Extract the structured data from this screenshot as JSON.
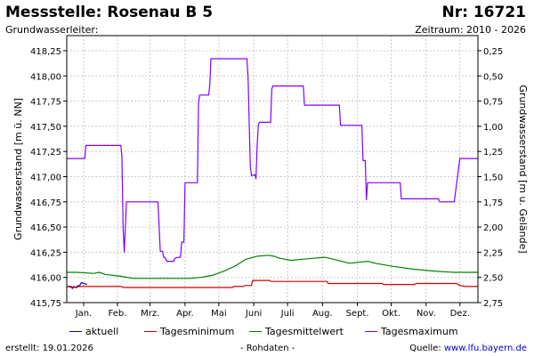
{
  "header": {
    "title": "Messstelle: Rosenau B 5",
    "nr": "Nr: 16721",
    "subtitle_left": "Grundwasserleiter:",
    "subtitle_right": "Zeitraum: 2010 - 2026"
  },
  "footer": {
    "created": "erstellt:  19.01.2026",
    "center": "- Rohdaten -",
    "source_label": "Quelle: ",
    "source_link": "www.lfu.bayern.de"
  },
  "chart_data": {
    "type": "line",
    "x_unit": "day of year (1 = 1 Jan)",
    "xlim": [
      1,
      366
    ],
    "ylim": [
      415.75,
      418.4
    ],
    "ylabel": "Grundwasserstand [m ü. NN]",
    "ylabel_right": "Grundwasserstand [m u. Gelände]",
    "grid": true,
    "legend_position": "bottom",
    "months": [
      {
        "label": "Jan.",
        "day": 16
      },
      {
        "label": "Feb.",
        "day": 46
      },
      {
        "label": "Mrz.",
        "day": 75
      },
      {
        "label": "Apr.",
        "day": 106
      },
      {
        "label": "Mai",
        "day": 136
      },
      {
        "label": "Juni",
        "day": 167
      },
      {
        "label": "Juli",
        "day": 197
      },
      {
        "label": "Aug.",
        "day": 228
      },
      {
        "label": "Sept.",
        "day": 259
      },
      {
        "label": "Okt.",
        "day": 289
      },
      {
        "label": "Nov.",
        "day": 320
      },
      {
        "label": "Dez.",
        "day": 350
      }
    ],
    "yticks_left": [
      {
        "value": 415.75,
        "label": "415,75"
      },
      {
        "value": 416.0,
        "label": "416,00"
      },
      {
        "value": 416.25,
        "label": "416,25"
      },
      {
        "value": 416.5,
        "label": "416,50"
      },
      {
        "value": 416.75,
        "label": "416,75"
      },
      {
        "value": 417.0,
        "label": "417,00"
      },
      {
        "value": 417.25,
        "label": "417,25"
      },
      {
        "value": 417.5,
        "label": "417,50"
      },
      {
        "value": 417.75,
        "label": "417,75"
      },
      {
        "value": 418.0,
        "label": "418,00"
      },
      {
        "value": 418.25,
        "label": "418,25"
      }
    ],
    "yticks_right": [
      {
        "value": 415.75,
        "label": "2,75"
      },
      {
        "value": 416.0,
        "label": "2,50"
      },
      {
        "value": 416.25,
        "label": "2,25"
      },
      {
        "value": 416.5,
        "label": "2,00"
      },
      {
        "value": 416.75,
        "label": "1,75"
      },
      {
        "value": 417.0,
        "label": "1,50"
      },
      {
        "value": 417.25,
        "label": "1,25"
      },
      {
        "value": 417.5,
        "label": "1,00"
      },
      {
        "value": 417.75,
        "label": "0,75"
      },
      {
        "value": 418.0,
        "label": "0,50"
      },
      {
        "value": 418.25,
        "label": "0,25"
      }
    ],
    "series": [
      {
        "name": "aktuell",
        "color": "#0000cc",
        "points": [
          [
            1,
            415.91
          ],
          [
            5,
            415.91
          ],
          [
            6,
            415.89
          ],
          [
            7,
            415.91
          ],
          [
            9,
            415.9
          ],
          [
            11,
            415.92
          ],
          [
            12,
            415.91
          ],
          [
            13,
            415.93
          ],
          [
            14,
            415.95
          ],
          [
            16,
            415.94
          ],
          [
            19,
            415.93
          ]
        ]
      },
      {
        "name": "Tagesminimum",
        "color": "#cc0000",
        "points": [
          [
            1,
            415.91
          ],
          [
            6,
            415.9
          ],
          [
            10,
            415.9
          ],
          [
            11,
            415.91
          ],
          [
            50,
            415.91
          ],
          [
            51,
            415.9
          ],
          [
            148,
            415.9
          ],
          [
            149,
            415.91
          ],
          [
            158,
            415.91
          ],
          [
            159,
            415.92
          ],
          [
            165,
            415.92
          ],
          [
            166,
            415.97
          ],
          [
            181,
            415.97
          ],
          [
            182,
            415.96
          ],
          [
            232,
            415.96
          ],
          [
            233,
            415.94
          ],
          [
            281,
            415.94
          ],
          [
            282,
            415.93
          ],
          [
            310,
            415.93
          ],
          [
            311,
            415.94
          ],
          [
            347,
            415.94
          ],
          [
            350,
            415.92
          ],
          [
            355,
            415.91
          ],
          [
            366,
            415.91
          ]
        ]
      },
      {
        "name": "Tagesmittelwert",
        "color": "#008000",
        "points": [
          [
            1,
            416.05
          ],
          [
            10,
            416.05
          ],
          [
            25,
            416.04
          ],
          [
            30,
            416.05
          ],
          [
            35,
            416.03
          ],
          [
            50,
            416.01
          ],
          [
            60,
            415.99
          ],
          [
            90,
            415.99
          ],
          [
            110,
            415.99
          ],
          [
            120,
            416.0
          ],
          [
            130,
            416.02
          ],
          [
            140,
            416.06
          ],
          [
            150,
            416.11
          ],
          [
            160,
            416.18
          ],
          [
            170,
            416.21
          ],
          [
            180,
            416.22
          ],
          [
            185,
            416.21
          ],
          [
            190,
            416.19
          ],
          [
            200,
            416.17
          ],
          [
            210,
            416.18
          ],
          [
            220,
            416.19
          ],
          [
            230,
            416.2
          ],
          [
            238,
            416.18
          ],
          [
            245,
            416.16
          ],
          [
            252,
            416.14
          ],
          [
            260,
            416.15
          ],
          [
            268,
            416.16
          ],
          [
            275,
            416.14
          ],
          [
            290,
            416.11
          ],
          [
            310,
            416.08
          ],
          [
            330,
            416.06
          ],
          [
            345,
            416.05
          ],
          [
            366,
            416.05
          ]
        ]
      },
      {
        "name": "Tagesmaximum",
        "color": "#8000ff",
        "points": [
          [
            1,
            417.18
          ],
          [
            17,
            417.18
          ],
          [
            18,
            417.31
          ],
          [
            49,
            417.31
          ],
          [
            50,
            417.2
          ],
          [
            51,
            416.5
          ],
          [
            52,
            416.25
          ],
          [
            54,
            416.75
          ],
          [
            82,
            416.75
          ],
          [
            83,
            416.5
          ],
          [
            84,
            416.26
          ],
          [
            86,
            416.26
          ],
          [
            87,
            416.2
          ],
          [
            88,
            416.2
          ],
          [
            90,
            416.16
          ],
          [
            96,
            416.16
          ],
          [
            97,
            416.19
          ],
          [
            100,
            416.2
          ],
          [
            102,
            416.2
          ],
          [
            103,
            416.35
          ],
          [
            105,
            416.35
          ],
          [
            106,
            416.94
          ],
          [
            117,
            416.94
          ],
          [
            118,
            417.74
          ],
          [
            119,
            417.81
          ],
          [
            127,
            417.81
          ],
          [
            128,
            417.92
          ],
          [
            129,
            418.17
          ],
          [
            161,
            418.17
          ],
          [
            162,
            417.97
          ],
          [
            163,
            417.5
          ],
          [
            164,
            417.1
          ],
          [
            165,
            417.01
          ],
          [
            168,
            417.02
          ],
          [
            169,
            416.98
          ],
          [
            170,
            417.3
          ],
          [
            171,
            417.51
          ],
          [
            172,
            417.54
          ],
          [
            182,
            417.54
          ],
          [
            183,
            417.87
          ],
          [
            184,
            417.9
          ],
          [
            211,
            417.9
          ],
          [
            212,
            417.71
          ],
          [
            243,
            417.71
          ],
          [
            244,
            417.51
          ],
          [
            263,
            417.51
          ],
          [
            264,
            417.16
          ],
          [
            266,
            417.16
          ],
          [
            267,
            416.77
          ],
          [
            268,
            416.94
          ],
          [
            297,
            416.94
          ],
          [
            298,
            416.78
          ],
          [
            331,
            416.78
          ],
          [
            332,
            416.75
          ],
          [
            345,
            416.75
          ],
          [
            350,
            417.18
          ],
          [
            366,
            417.18
          ]
        ]
      }
    ]
  }
}
